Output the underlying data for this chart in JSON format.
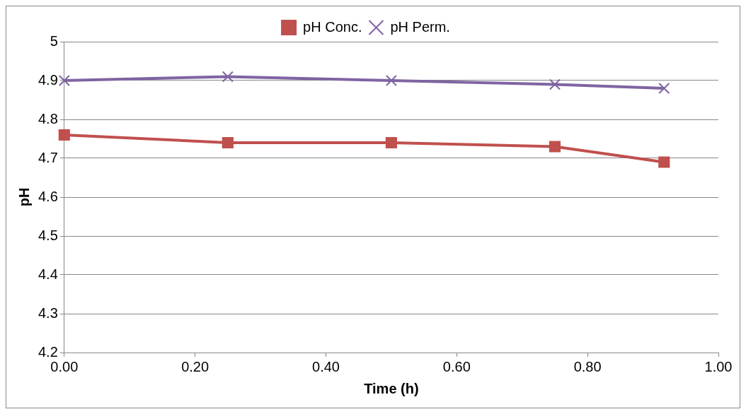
{
  "chart_data": {
    "type": "line",
    "xlabel": "Time (h)",
    "ylabel": "pH",
    "x": [
      0,
      0.25,
      0.5,
      0.75,
      0.917
    ],
    "series": [
      {
        "name": "pH Conc.",
        "color": "#c0504d",
        "marker": "square",
        "values": [
          4.76,
          4.74,
          4.74,
          4.73,
          4.69
        ]
      },
      {
        "name": "pH Perm.",
        "color": "#8064a2",
        "marker": "cross",
        "values": [
          4.9,
          4.91,
          4.9,
          4.89,
          4.88
        ]
      }
    ],
    "xlim": [
      0,
      1
    ],
    "xticks": [
      {
        "value": 0,
        "label": "0.00"
      },
      {
        "value": 0.2,
        "label": "0.20"
      },
      {
        "value": 0.4,
        "label": "0.40"
      },
      {
        "value": 0.6,
        "label": "0.60"
      },
      {
        "value": 0.8,
        "label": "0.80"
      },
      {
        "value": 1,
        "label": "1.00"
      }
    ],
    "ylim": [
      4.2,
      5
    ],
    "yticks": [
      4.2,
      4.3,
      4.4,
      4.5,
      4.6,
      4.7,
      4.8,
      4.9,
      5
    ],
    "grid": "y",
    "legend": "top",
    "line_style": "solid"
  }
}
